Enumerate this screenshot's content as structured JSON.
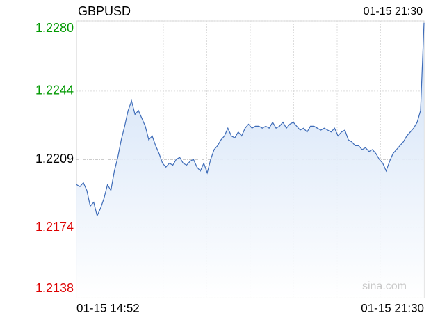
{
  "chart_data": {
    "type": "line",
    "title": "GBPUSD",
    "timestamp": "01-15 21:30",
    "x_labels": [
      "01-15 14:52",
      "01-15 21:30"
    ],
    "watermark": "sina.com",
    "ylim": [
      1.2138,
      1.228
    ],
    "yticks": [
      {
        "value": 1.228,
        "label": "1.2280"
      },
      1.2244,
      1.2209,
      1.2174,
      1.2138
    ],
    "ytick_colors": [
      "#009900",
      "#009900",
      "#000000",
      "#dd0000",
      "#dd0000"
    ],
    "grid": true,
    "series": [
      {
        "name": "GBPUSD",
        "color": "#3d6bb8",
        "values": [
          1.2196,
          1.2195,
          1.2197,
          1.2193,
          1.2185,
          1.2187,
          1.218,
          1.2184,
          1.2189,
          1.2196,
          1.2193,
          1.2203,
          1.221,
          1.2219,
          1.2226,
          1.2234,
          1.2239,
          1.2232,
          1.2234,
          1.223,
          1.2226,
          1.2219,
          1.2221,
          1.2216,
          1.2212,
          1.2207,
          1.2205,
          1.2207,
          1.2206,
          1.2209,
          1.221,
          1.2207,
          1.2206,
          1.2208,
          1.2209,
          1.2205,
          1.2203,
          1.2207,
          1.2202,
          1.2209,
          1.2214,
          1.2216,
          1.2219,
          1.2221,
          1.2225,
          1.2221,
          1.222,
          1.2223,
          1.2221,
          1.2225,
          1.2227,
          1.2225,
          1.2226,
          1.2226,
          1.2225,
          1.2226,
          1.2225,
          1.2228,
          1.2225,
          1.2226,
          1.2228,
          1.2225,
          1.2227,
          1.2228,
          1.2226,
          1.2224,
          1.2225,
          1.2223,
          1.2226,
          1.2226,
          1.2225,
          1.2224,
          1.2225,
          1.2224,
          1.2223,
          1.2225,
          1.2221,
          1.2223,
          1.2224,
          1.2219,
          1.2218,
          1.2216,
          1.2216,
          1.2214,
          1.2215,
          1.2213,
          1.2214,
          1.2212,
          1.2209,
          1.2207,
          1.2203,
          1.2208,
          1.2212,
          1.2214,
          1.2216,
          1.2218,
          1.2221,
          1.2223,
          1.2225,
          1.2228,
          1.2234,
          1.2279
        ]
      }
    ]
  }
}
